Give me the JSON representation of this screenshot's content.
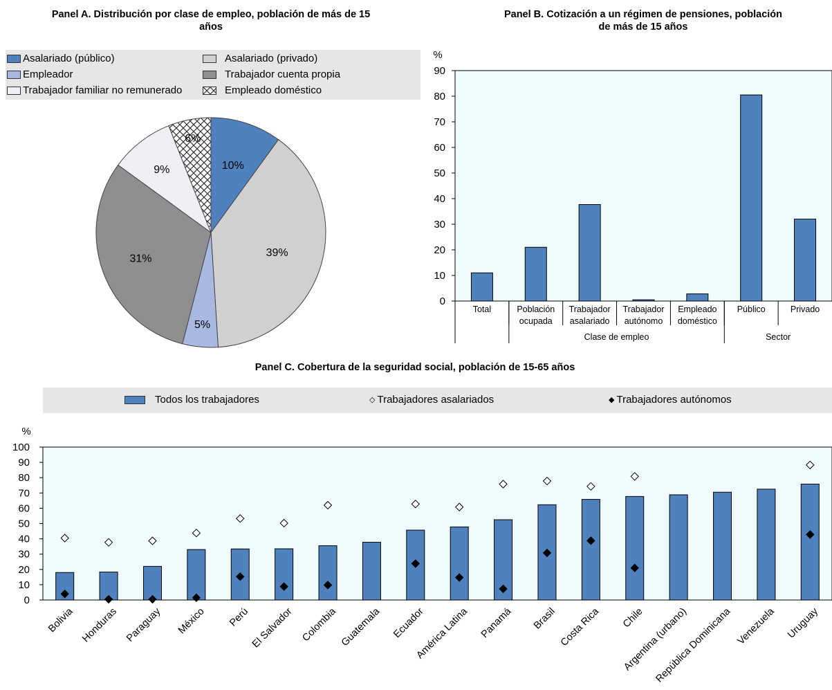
{
  "chart_data": [
    {
      "type": "pie",
      "title": "Panel A. Distribución por clase de empleo, población de más de 15 años",
      "labels": [
        "Asalariado (público)",
        "Asalariado (privado)",
        "Empleador",
        "Trabajador cuenta propia",
        "Trabajador familiar no remunerado",
        "Empleado doméstico"
      ],
      "values": [
        10,
        39,
        5,
        31,
        9,
        6
      ],
      "value_labels": [
        "10%",
        "39%",
        "5%",
        "31%",
        "9%",
        "6%"
      ],
      "colors": [
        "#4f81bd",
        "#d0d0d0",
        "#a9b8e0",
        "#8f8f8f",
        "#eef0f6",
        "pattern-crosshatch"
      ],
      "legend": "top"
    },
    {
      "type": "bar",
      "title": "Panel B. Cotización a un régimen de pensiones, población de más de 15 años",
      "ylabel": "%",
      "ylim": [
        0,
        90
      ],
      "yticks": [
        0,
        10,
        20,
        30,
        40,
        50,
        60,
        70,
        80,
        90
      ],
      "categories": [
        "Total",
        "Población ocupada",
        "Trabajador asalariado",
        "Trabajador autónomo",
        "Empleado doméstico",
        "Público",
        "Privado"
      ],
      "category_lines": [
        [
          "Total"
        ],
        [
          "Población",
          "ocupada"
        ],
        [
          "Trabajador",
          "asalariado"
        ],
        [
          "Trabajador",
          "autónomo"
        ],
        [
          "Empleado",
          "doméstico"
        ],
        [
          "Público"
        ],
        [
          "Privado"
        ]
      ],
      "groups": [
        {
          "label": "Clase de empleo",
          "from": 1,
          "to": 4
        },
        {
          "label": "Sector",
          "from": 5,
          "to": 6
        }
      ],
      "values": [
        11,
        21,
        37.7,
        0.5,
        2.8,
        80.5,
        32
      ],
      "color": "#4f81bd"
    },
    {
      "type": "bar",
      "title": "Panel C. Cobertura de la seguridad social, población de 15-65 años",
      "ylabel": "%",
      "ylim": [
        0,
        100
      ],
      "yticks": [
        0,
        10,
        20,
        30,
        40,
        50,
        60,
        70,
        80,
        90,
        100
      ],
      "categories": [
        "Bolivia",
        "Honduras",
        "Paraguay",
        "México",
        "Perú",
        "El Salvador",
        "Colombia",
        "Guatemala",
        "Ecuador",
        "América Latina",
        "Panamá",
        "Brasil",
        "Costa Rica",
        "Chile",
        "Argentina (urbano)",
        "República Dominicana",
        "Venezuela",
        "Uruguay"
      ],
      "series": [
        {
          "name": "Todos los trabajadores",
          "marker": "bar",
          "color": "#4f81bd",
          "values": [
            18,
            18.3,
            22,
            33,
            33.4,
            33.5,
            35.5,
            37.8,
            45.7,
            47.8,
            52.5,
            62.3,
            65.8,
            67.7,
            68.8,
            70.5,
            72.5,
            75.8
          ]
        },
        {
          "name": "Trabajadores asalariados",
          "marker": "open-diamond",
          "values": [
            40.5,
            37.7,
            38.7,
            43.8,
            53.3,
            50.3,
            62,
            null,
            62.8,
            60.8,
            75.8,
            77.8,
            74.3,
            80.8,
            null,
            null,
            null,
            88.3
          ]
        },
        {
          "name": "Trabajadores autónomos",
          "marker": "filled-diamond",
          "values": [
            4,
            0.5,
            0.5,
            1.5,
            15.3,
            8.8,
            9.8,
            null,
            23.8,
            14.7,
            7.3,
            30.8,
            38.8,
            21,
            null,
            null,
            null,
            42.8
          ]
        }
      ],
      "legend": "top"
    }
  ]
}
